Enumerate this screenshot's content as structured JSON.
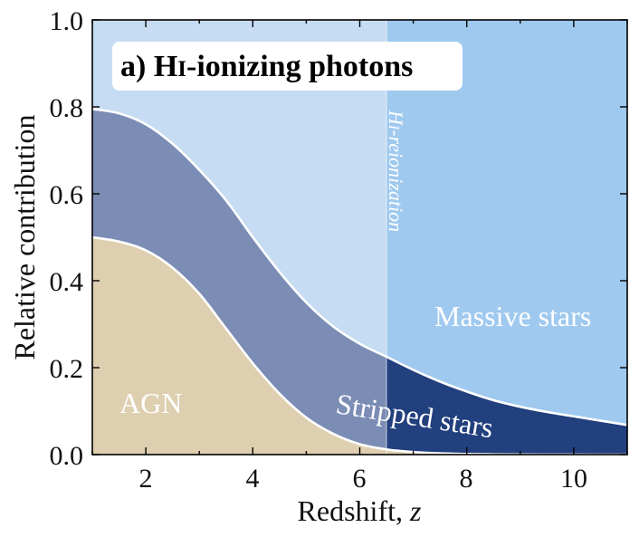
{
  "chart_data": {
    "type": "area",
    "title": "a) HI-ionizing photons",
    "title_parts": {
      "prefix": "a) H",
      "roman": "I",
      "suffix": "-ionizing photons"
    },
    "xlabel": "Redshift, z",
    "xlabel_parts": {
      "text": "Redshift, ",
      "var": "z"
    },
    "ylabel": "Relative contribution",
    "xlim": [
      1,
      11
    ],
    "ylim": [
      0,
      1
    ],
    "xticks": [
      2,
      4,
      6,
      8,
      10
    ],
    "yticks": [
      0.0,
      0.2,
      0.4,
      0.6,
      0.8,
      1.0
    ],
    "ytick_labels": [
      "0.0",
      "0.2",
      "0.4",
      "0.6",
      "0.8",
      "1.0"
    ],
    "reionization_redshift": 6.5,
    "reionization_label": "HI-reionization",
    "reionization_label_parts": {
      "roman": "H",
      "small": "I",
      "rest": "-reionization"
    },
    "x": [
      1,
      1.5,
      2,
      2.5,
      3,
      3.5,
      4,
      4.5,
      5,
      5.5,
      6,
      6.5,
      7,
      7.5,
      8,
      8.5,
      9,
      9.5,
      10,
      10.5,
      11
    ],
    "series": [
      {
        "name": "AGN",
        "label": "AGN",
        "color": "#decfb0",
        "values": [
          0.5,
          0.49,
          0.47,
          0.43,
          0.37,
          0.29,
          0.21,
          0.14,
          0.085,
          0.048,
          0.024,
          0.012,
          0.006,
          0.003,
          0.0015,
          0.0008,
          0.0004,
          0.0002,
          0.0001,
          0.0,
          0.0
        ]
      },
      {
        "name": "Stripped stars",
        "label": "Stripped stars",
        "color": "#7b8db5",
        "color_after": "#223f7e",
        "cumulative_top": [
          0.795,
          0.785,
          0.76,
          0.715,
          0.655,
          0.585,
          0.5,
          0.42,
          0.35,
          0.295,
          0.255,
          0.225,
          0.195,
          0.168,
          0.145,
          0.125,
          0.11,
          0.098,
          0.088,
          0.078,
          0.068
        ]
      },
      {
        "name": "Massive stars",
        "label": "Massive stars",
        "color": "#c6dcf3",
        "color_after": "#9fc9ef",
        "cumulative_top": [
          1,
          1,
          1,
          1,
          1,
          1,
          1,
          1,
          1,
          1,
          1,
          1,
          1,
          1,
          1,
          1,
          1,
          1,
          1,
          1,
          1
        ]
      }
    ]
  }
}
